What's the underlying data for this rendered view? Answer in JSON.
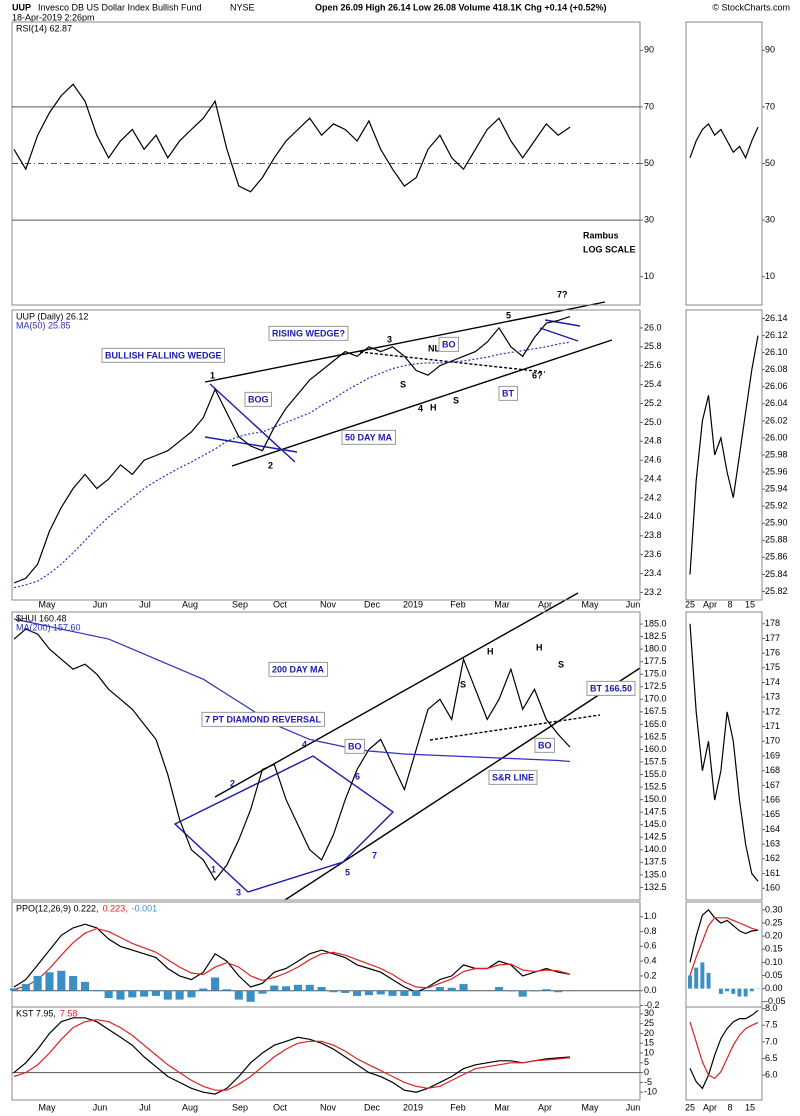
{
  "header": {
    "symbol": "UUP",
    "name": "Invesco DB US Dollar Index Bullish Fund",
    "exchange": "NYSE",
    "date": "18-Apr-2019 2:26pm",
    "quote": "Open 26.09  High 26.14  Low 26.08  Volume 418.1K  Chg +0.14 (+0.52%)",
    "credit": "© StockCharts.com"
  },
  "x_axis": {
    "labels": [
      "May",
      "Jun",
      "Jul",
      "Aug",
      "Sep",
      "Oct",
      "Nov",
      "Dec",
      "2019",
      "Feb",
      "Mar",
      "Apr",
      "May",
      "Jun"
    ],
    "mini_labels": [
      "25",
      "Apr",
      "8",
      "15"
    ]
  },
  "chart_data": [
    {
      "type": "line",
      "ylim": [
        0,
        100
      ],
      "yticks": [
        10,
        30,
        50,
        70,
        90
      ],
      "reference_lines": [
        {
          "value": 70
        },
        {
          "value": 50,
          "dashed": true
        },
        {
          "value": 30
        }
      ],
      "series": [
        {
          "name": "RSI(14) 62.87",
          "color": "#000000",
          "values": [
            55,
            48,
            60,
            68,
            74,
            78,
            72,
            60,
            52,
            58,
            62,
            55,
            60,
            52,
            58,
            62,
            66,
            72,
            55,
            42,
            40,
            45,
            52,
            58,
            62,
            66,
            60,
            64,
            62,
            58,
            65,
            55,
            48,
            42,
            45,
            55,
            60,
            52,
            48,
            55,
            62,
            66,
            58,
            52,
            58,
            64,
            60,
            62.87
          ]
        }
      ],
      "mini": {
        "ylim": [
          0,
          100
        ],
        "yticks": [
          10,
          30,
          50,
          70,
          90
        ],
        "series": [
          {
            "color": "#000000",
            "values": [
              52,
              58,
              62,
              64,
              60,
              62,
              58,
              54,
              56,
              52,
              58,
              62.87
            ]
          }
        ]
      },
      "annotations": [
        "Rambus",
        "LOG SCALE"
      ]
    },
    {
      "type": "line",
      "ylim": [
        23.12,
        26.19
      ],
      "yticks": [
        23.2,
        23.4,
        23.6,
        23.8,
        {
          "value": 24,
          "label": "24.0"
        },
        24.2,
        24.4,
        24.6,
        24.8,
        {
          "value": 25,
          "label": "25.0"
        },
        25.2,
        25.4,
        25.6,
        25.8,
        {
          "value": 26,
          "label": "26.0"
        }
      ],
      "series": [
        {
          "name": "UUP (Daily) 26.12",
          "color": "#000000",
          "values": [
            23.3,
            23.35,
            23.5,
            23.85,
            24.1,
            24.3,
            24.45,
            24.3,
            24.4,
            24.55,
            24.45,
            24.6,
            24.65,
            24.7,
            24.8,
            24.9,
            25.05,
            25.35,
            25.1,
            24.85,
            24.75,
            24.7,
            24.95,
            25.15,
            25.3,
            25.45,
            25.55,
            25.65,
            25.75,
            25.7,
            25.8,
            25.75,
            25.8,
            25.7,
            25.55,
            25.5,
            25.6,
            25.65,
            25.7,
            25.75,
            25.85,
            26.0,
            25.8,
            25.7,
            25.9,
            26.05,
            26.08,
            26.12
          ]
        },
        {
          "name": "MA(50) 25.85",
          "color": "#3030c0",
          "dashed": true,
          "values": [
            23.25,
            23.28,
            23.32,
            23.4,
            23.5,
            23.62,
            23.75,
            23.88,
            24.0,
            24.1,
            24.2,
            24.3,
            24.38,
            24.45,
            24.52,
            24.58,
            24.65,
            24.72,
            24.8,
            24.85,
            24.88,
            24.9,
            24.95,
            25.0,
            25.05,
            25.1,
            25.18,
            25.25,
            25.33,
            25.4,
            25.47,
            25.52,
            25.57,
            25.6,
            25.62,
            25.63,
            25.63,
            25.64,
            25.65,
            25.67,
            25.69,
            25.72,
            25.74,
            25.76,
            25.78,
            25.8,
            25.83,
            25.85
          ]
        }
      ],
      "mini": {
        "ylim": [
          25.81,
          26.15
        ],
        "yticks": [
          25.82,
          25.84,
          25.86,
          25.88,
          {
            "value": 25.9,
            "label": "25.90"
          },
          25.92,
          25.94,
          25.96,
          25.98,
          {
            "value": 26,
            "label": "26.00"
          },
          26.02,
          26.04,
          26.06,
          26.08,
          {
            "value": 26.1,
            "label": "26.10"
          },
          26.12,
          26.14
        ],
        "series": [
          {
            "color": "#000000",
            "values": [
              25.84,
              25.95,
              26.02,
              26.05,
              25.98,
              26.0,
              25.96,
              25.93,
              25.98,
              26.03,
              26.08,
              26.12
            ]
          }
        ]
      },
      "annotations": [
        "BULLISH FALLING WEDGE",
        "RISING WEDGE?",
        "BOG",
        "50 DAY MA",
        "NL",
        "BO",
        "BT",
        "1",
        "2",
        "3",
        "4",
        "5",
        "6?",
        "7?",
        "S",
        "H",
        "S"
      ]
    },
    {
      "type": "line",
      "ylim": [
        130,
        187.4
      ],
      "yticks": [
        132.5,
        {
          "value": 135,
          "label": "135.0"
        },
        137.5,
        {
          "value": 140,
          "label": "140.0"
        },
        142.5,
        {
          "value": 145,
          "label": "145.0"
        },
        147.5,
        {
          "value": 150,
          "label": "150.0"
        },
        152.5,
        {
          "value": 155,
          "label": "155.0"
        },
        157.5,
        {
          "value": 160,
          "label": "160.0"
        },
        162.5,
        {
          "value": 165,
          "label": "165.0"
        },
        167.5,
        {
          "value": 170,
          "label": "170.0"
        },
        172.5,
        {
          "value": 175,
          "label": "175.0"
        },
        177.5,
        {
          "value": 180,
          "label": "180.0"
        },
        182.5,
        {
          "value": 185,
          "label": "185.0"
        }
      ],
      "series": [
        {
          "name": "$HUI 160.48",
          "color": "#000000",
          "values": [
            182,
            184,
            183,
            180,
            178,
            176,
            177,
            175,
            172,
            170,
            168,
            165,
            162,
            155,
            146,
            140,
            138,
            134,
            137,
            142,
            148,
            156,
            157,
            150,
            145,
            140,
            138,
            143,
            150,
            156,
            160,
            162,
            157,
            152,
            160,
            168,
            170,
            166,
            178,
            172,
            166,
            170,
            176,
            168,
            172,
            166,
            163,
            160.48
          ]
        },
        {
          "name": "MA(200) 157.60",
          "color": "#3030c0",
          "values": [
            186,
            185.5,
            185,
            184.5,
            184,
            183.5,
            183,
            182.5,
            182,
            181,
            180,
            179,
            178,
            177,
            176,
            175,
            174,
            172.5,
            171,
            169.5,
            168,
            166.5,
            165,
            164,
            163,
            162,
            161.5,
            161,
            160.5,
            160,
            159.7,
            159.5,
            159.3,
            159.1,
            159,
            158.9,
            158.8,
            158.7,
            158.6,
            158.5,
            158.4,
            158.3,
            158.2,
            158.1,
            158,
            157.9,
            157.8,
            157.6
          ]
        }
      ],
      "mini": {
        "ylim": [
          159.2,
          178.8
        ],
        "yticks": [
          160,
          161,
          162,
          163,
          164,
          165,
          166,
          167,
          168,
          169,
          170,
          171,
          172,
          173,
          174,
          175,
          176,
          177,
          178
        ],
        "series": [
          {
            "color": "#000000",
            "values": [
              178,
              172,
              168,
              170,
              166,
              168,
              172,
              170,
              166,
              163,
              161,
              160.48
            ]
          }
        ]
      },
      "annotations": [
        "200 DAY MA",
        "7 PT DIAMOND REVERSAL",
        "1",
        "2",
        "3",
        "4",
        "5",
        "6",
        "7",
        "BO",
        "S",
        "H",
        "H",
        "S",
        "S&R LINE",
        "BT 166.50",
        "BO"
      ]
    },
    {
      "type": "line",
      "ylim": [
        -0.22,
        1.2
      ],
      "yticks": [
        -0.2,
        {
          "value": 0,
          "label": "0.0"
        },
        0.2,
        0.4,
        0.6,
        0.8,
        {
          "value": 1,
          "label": "1.0"
        }
      ],
      "reference_lines": [
        {
          "value": 0
        }
      ],
      "series": [
        {
          "name": "PPO(12,26,9) 0.222,",
          "color": "#000000",
          "values": [
            0.05,
            0.15,
            0.35,
            0.55,
            0.75,
            0.85,
            0.9,
            0.85,
            0.7,
            0.6,
            0.55,
            0.5,
            0.45,
            0.3,
            0.2,
            0.15,
            0.25,
            0.5,
            0.4,
            0.2,
            0.05,
            0.1,
            0.25,
            0.3,
            0.4,
            0.5,
            0.55,
            0.5,
            0.45,
            0.35,
            0.3,
            0.25,
            0.15,
            0.05,
            -0.02,
            0.05,
            0.15,
            0.2,
            0.35,
            0.3,
            0.3,
            0.4,
            0.35,
            0.2,
            0.25,
            0.3,
            0.25,
            0.222
          ]
        },
        {
          "name": "0.223,",
          "color": "#e02020",
          "values": [
            0.02,
            0.06,
            0.15,
            0.3,
            0.48,
            0.65,
            0.78,
            0.84,
            0.8,
            0.72,
            0.64,
            0.58,
            0.52,
            0.42,
            0.32,
            0.24,
            0.22,
            0.32,
            0.38,
            0.32,
            0.2,
            0.14,
            0.18,
            0.24,
            0.32,
            0.42,
            0.5,
            0.52,
            0.48,
            0.42,
            0.36,
            0.3,
            0.22,
            0.12,
            0.05,
            0.04,
            0.1,
            0.16,
            0.26,
            0.3,
            0.3,
            0.35,
            0.36,
            0.28,
            0.26,
            0.28,
            0.27,
            0.223
          ]
        },
        {
          "name": "-0.001",
          "color": "#3a8fc4",
          "style": "bar",
          "values": [
            0.03,
            0.09,
            0.2,
            0.25,
            0.27,
            0.2,
            0.12,
            0.01,
            -0.1,
            -0.12,
            -0.09,
            -0.08,
            -0.07,
            -0.12,
            -0.12,
            -0.09,
            0.03,
            0.18,
            0.02,
            -0.12,
            -0.15,
            -0.04,
            0.07,
            0.06,
            0.08,
            0.08,
            0.05,
            -0.02,
            -0.03,
            -0.07,
            -0.06,
            -0.05,
            -0.07,
            -0.07,
            -0.07,
            0.01,
            0.05,
            0.04,
            0.09,
            0.0,
            0.0,
            0.05,
            -0.01,
            -0.08,
            -0.01,
            0.02,
            -0.02,
            -0.001
          ]
        }
      ],
      "mini": {
        "ylim": [
          -0.07,
          0.33
        ],
        "yticks": [
          -0.05,
          {
            "value": 0,
            "label": "0.00"
          },
          0.05,
          {
            "value": 0.1,
            "label": "0.10"
          },
          0.15,
          {
            "value": 0.2,
            "label": "0.20"
          },
          0.25,
          {
            "value": 0.3,
            "label": "0.30"
          }
        ],
        "series": [
          {
            "color": "#000000",
            "values": [
              0.1,
              0.2,
              0.28,
              0.3,
              0.27,
              0.25,
              0.26,
              0.24,
              0.22,
              0.21,
              0.22,
              0.222
            ]
          },
          {
            "color": "#e02020",
            "values": [
              0.05,
              0.12,
              0.18,
              0.24,
              0.27,
              0.27,
              0.27,
              0.26,
              0.25,
              0.24,
              0.23,
              0.223
            ]
          },
          {
            "color": "#3a8fc4",
            "style": "bar",
            "values": [
              0.05,
              0.08,
              0.1,
              0.06,
              0.0,
              -0.02,
              -0.01,
              -0.02,
              -0.03,
              -0.03,
              -0.01,
              -0.001
            ]
          }
        ]
      },
      "annotations": []
    },
    {
      "type": "line",
      "ylim": [
        -14,
        33.5
      ],
      "yticks": [
        -10,
        -5,
        0,
        5,
        10,
        15,
        20,
        25,
        30
      ],
      "reference_lines": [
        {
          "value": 0
        }
      ],
      "series": [
        {
          "name": "KST 7.95,",
          "color": "#000000",
          "values": [
            0,
            5,
            12,
            20,
            26,
            28,
            28,
            26,
            22,
            18,
            14,
            8,
            3,
            -2,
            -5,
            -8,
            -10,
            -11,
            -8,
            -2,
            5,
            10,
            14,
            16,
            18,
            17,
            15,
            12,
            8,
            4,
            0,
            -2,
            -5,
            -9,
            -10,
            -8,
            -5,
            -2,
            2,
            4,
            5,
            6,
            6,
            5,
            6,
            7,
            7.5,
            7.95
          ]
        },
        {
          "name": "7.58",
          "color": "#e02020",
          "values": [
            -2,
            0,
            4,
            10,
            17,
            23,
            26,
            27,
            26,
            23,
            19,
            14,
            9,
            4,
            0,
            -4,
            -7,
            -9,
            -9,
            -6,
            -2,
            3,
            8,
            12,
            15,
            16,
            16,
            14,
            11,
            7,
            4,
            1,
            -2,
            -5,
            -7,
            -8,
            -7,
            -4,
            -1,
            2,
            3,
            4,
            5,
            5,
            6,
            6.5,
            7,
            7.58
          ]
        }
      ],
      "mini": {
        "ylim": [
          5.25,
          8.05
        ],
        "yticks": [
          {
            "value": 6,
            "label": "6.0"
          },
          6.5,
          {
            "value": 7,
            "label": "7.0"
          },
          7.5,
          {
            "value": 8,
            "label": "8.0"
          }
        ],
        "series": [
          {
            "color": "#000000",
            "values": [
              6.2,
              5.8,
              5.6,
              6.0,
              6.6,
              7.1,
              7.4,
              7.6,
              7.7,
              7.7,
              7.8,
              7.95
            ]
          },
          {
            "color": "#e02020",
            "values": [
              7.6,
              7.0,
              6.4,
              6.0,
              5.9,
              6.1,
              6.5,
              6.9,
              7.2,
              7.4,
              7.5,
              7.58
            ]
          }
        ]
      },
      "annotations": []
    }
  ]
}
